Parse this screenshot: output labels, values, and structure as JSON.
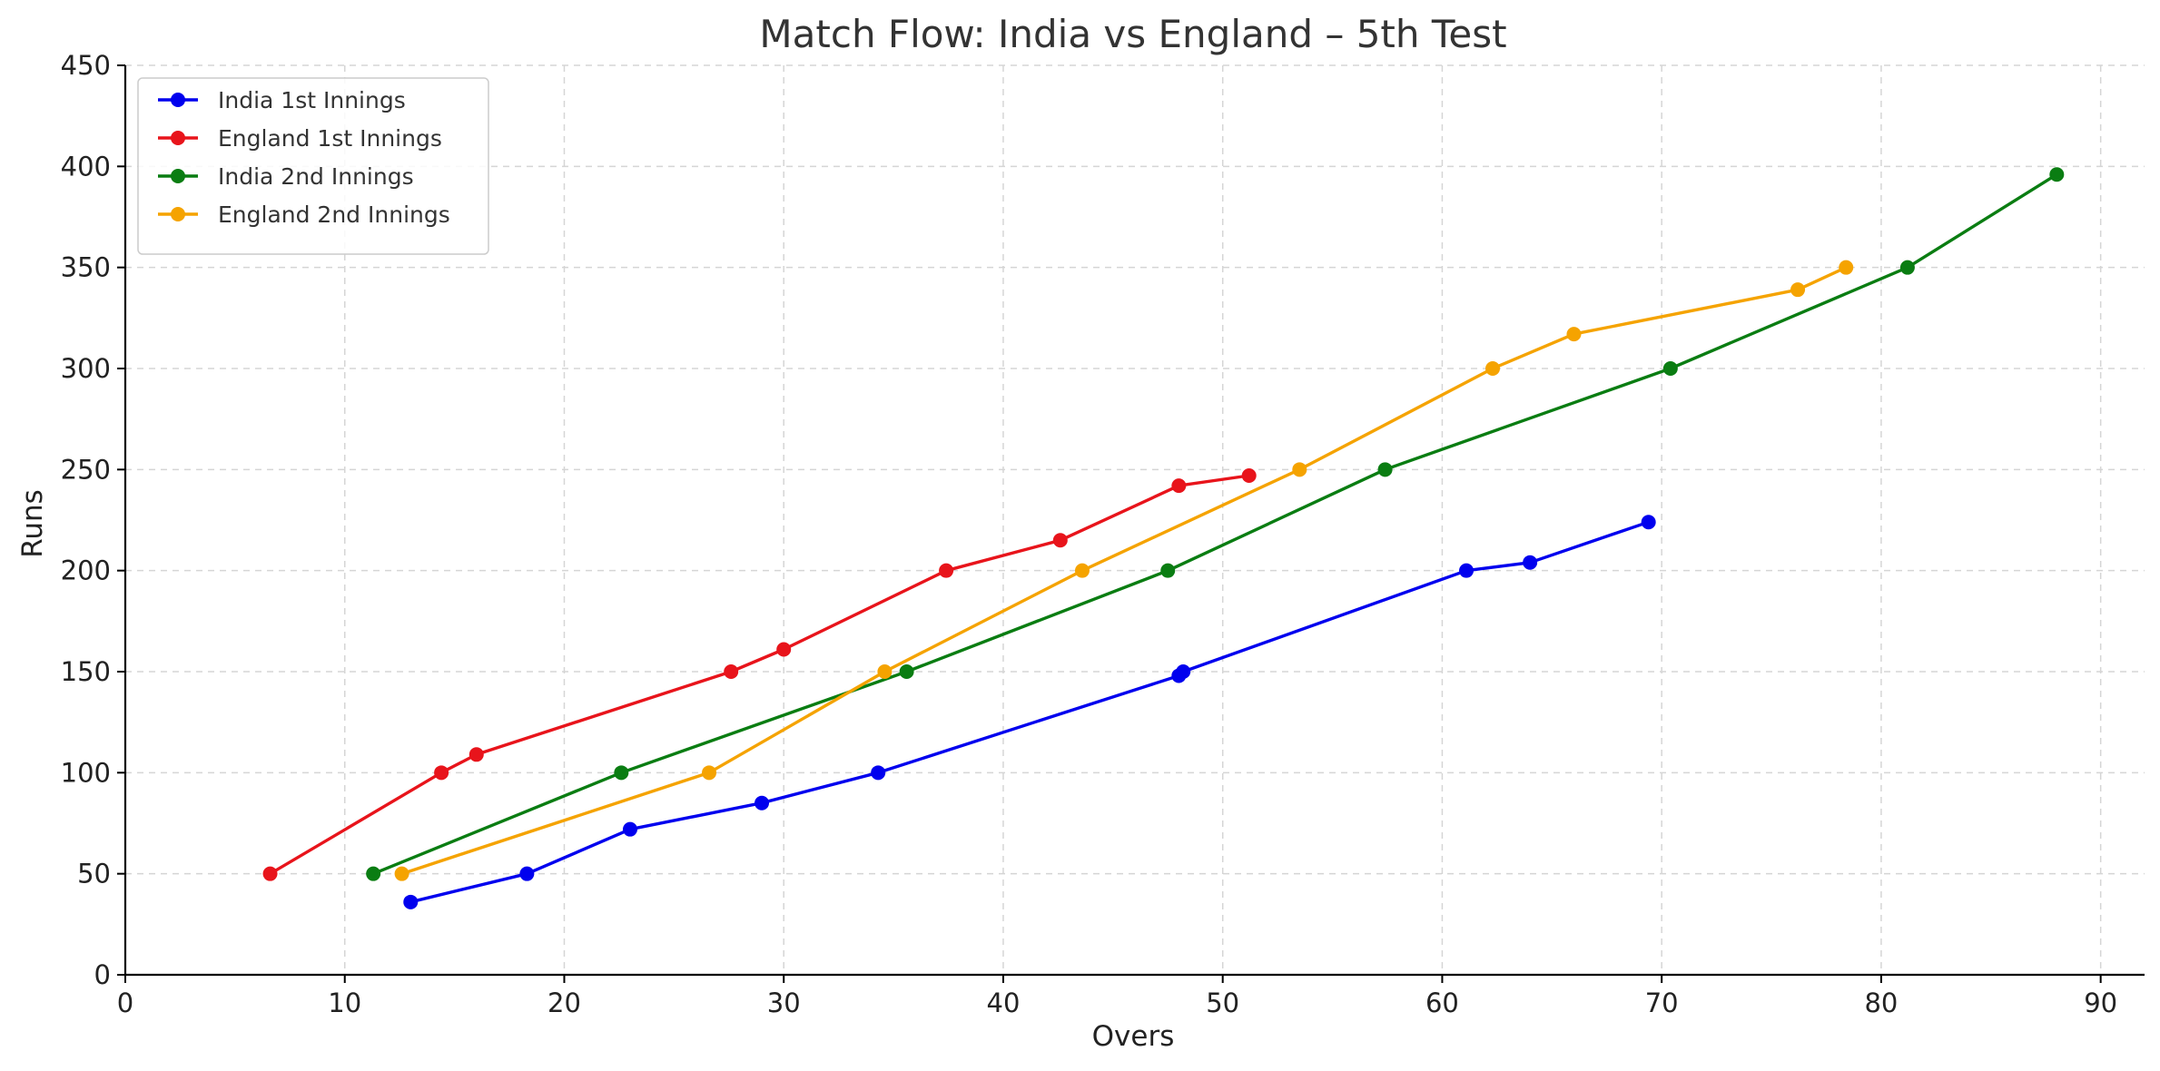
{
  "chart_data": {
    "type": "line",
    "title": "Match Flow: India vs England – 5th Test",
    "xlabel": "Overs",
    "ylabel": "Runs",
    "xlim": [
      0,
      92
    ],
    "ylim": [
      0,
      450
    ],
    "xticks": [
      0,
      10,
      20,
      30,
      40,
      50,
      60,
      70,
      80,
      90
    ],
    "yticks": [
      0,
      50,
      100,
      150,
      200,
      250,
      300,
      350,
      400,
      450
    ],
    "grid": true,
    "legend_position": "top-left",
    "series": [
      {
        "name": "India 1st Innings",
        "color": "#0000ee",
        "x": [
          13.0,
          18.3,
          23.0,
          29.0,
          34.3,
          48.0,
          48.2,
          61.1,
          64.0,
          69.4
        ],
        "y": [
          36,
          50,
          72,
          85,
          100,
          148,
          150,
          200,
          204,
          224
        ]
      },
      {
        "name": "England 1st Innings",
        "color": "#e8141b",
        "x": [
          6.6,
          14.4,
          16.0,
          27.6,
          30.0,
          37.4,
          42.6,
          48.0,
          51.2
        ],
        "y": [
          50,
          100,
          109,
          150,
          161,
          200,
          215,
          242,
          247
        ]
      },
      {
        "name": "India 2nd Innings",
        "color": "#0a7d12",
        "x": [
          11.3,
          22.6,
          35.6,
          47.5,
          57.4,
          70.4,
          81.2,
          88.0
        ],
        "y": [
          50,
          100,
          150,
          200,
          250,
          300,
          350,
          396
        ]
      },
      {
        "name": "England 2nd Innings",
        "color": "#f5a300",
        "x": [
          12.6,
          26.6,
          34.6,
          43.6,
          53.5,
          62.3,
          66.0,
          76.2,
          78.4
        ],
        "y": [
          50,
          100,
          150,
          200,
          250,
          300,
          317,
          339,
          350
        ]
      }
    ]
  }
}
